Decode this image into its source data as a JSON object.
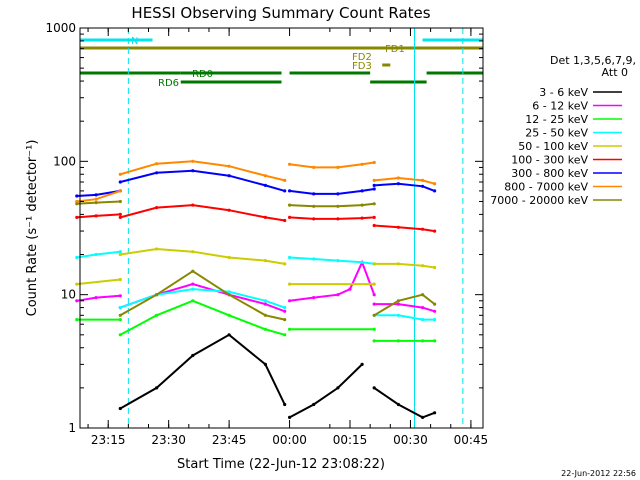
{
  "chart_data": {
    "type": "line",
    "title": "HESSI Observing Summary Count Rates",
    "xlabel": "Start Time (22-Jun-12 23:08:22)",
    "ylabel": "Count Rate (s⁻¹ detector⁻¹)",
    "yscale": "log",
    "ylim": [
      1,
      1000
    ],
    "xlim": [
      "23:08",
      "00:48"
    ],
    "x_ticks": [
      "23:15",
      "23:30",
      "23:45",
      "00:00",
      "00:15",
      "00:30",
      "00:45"
    ],
    "y_ticks": [
      "1",
      "10",
      "100",
      "1000"
    ],
    "legend_title_line1": "Det 1,3,5,6,7,9,",
    "legend_title_line2": "Att 0",
    "legend_position": "right",
    "series": [
      {
        "name": "3 - 6 keV",
        "color": "#000000",
        "segments": [
          {
            "x": [
              23.3,
              23.45,
              23.6,
              23.75,
              23.9,
              23.98
            ],
            "y": [
              1.4,
              2.0,
              3.5,
              5.0,
              3.0,
              1.5
            ]
          },
          {
            "x": [
              24.0,
              24.1,
              24.2,
              24.3
            ],
            "y": [
              1.2,
              1.5,
              2.0,
              3.0
            ]
          },
          {
            "x": [
              24.35,
              24.45,
              24.55,
              24.6
            ],
            "y": [
              2.0,
              1.5,
              1.2,
              1.3
            ]
          }
        ]
      },
      {
        "name": "6 - 12 keV",
        "color": "#ff00ff",
        "segments": [
          {
            "x": [
              23.12,
              23.2,
              23.3
            ],
            "y": [
              9.0,
              9.5,
              9.8
            ]
          },
          {
            "x": [
              23.3,
              23.45,
              23.6,
              23.75,
              23.9,
              23.98
            ],
            "y": [
              8.0,
              10.0,
              12.0,
              10.0,
              8.5,
              7.5
            ]
          },
          {
            "x": [
              24.0,
              24.1,
              24.2,
              24.25,
              24.3,
              24.35
            ],
            "y": [
              9.0,
              9.5,
              10.0,
              11.0,
              17.5,
              10.0
            ]
          },
          {
            "x": [
              24.35,
              24.45,
              24.55,
              24.6
            ],
            "y": [
              8.5,
              8.5,
              8.0,
              7.5
            ]
          }
        ]
      },
      {
        "name": "12 - 25 keV",
        "color": "#00ff00",
        "segments": [
          {
            "x": [
              23.12,
              23.3
            ],
            "y": [
              6.5,
              6.5
            ]
          },
          {
            "x": [
              23.3,
              23.45,
              23.6,
              23.75,
              23.9,
              23.98
            ],
            "y": [
              5.0,
              7.0,
              9.0,
              7.0,
              5.5,
              5.0
            ]
          },
          {
            "x": [
              24.0,
              24.35
            ],
            "y": [
              5.5,
              5.5
            ]
          },
          {
            "x": [
              24.35,
              24.45,
              24.55,
              24.6
            ],
            "y": [
              4.5,
              4.5,
              4.5,
              4.5
            ]
          }
        ]
      },
      {
        "name": "25 - 50 keV",
        "color": "#00ffff",
        "segments": [
          {
            "x": [
              23.12,
              23.2,
              23.3
            ],
            "y": [
              19.0,
              20.0,
              21.0
            ]
          },
          {
            "x": [
              23.3,
              23.45,
              23.6,
              23.75,
              23.9,
              23.98
            ],
            "y": [
              8.0,
              10.0,
              11.0,
              10.5,
              9.0,
              8.0
            ]
          },
          {
            "x": [
              24.0,
              24.1,
              24.2,
              24.3,
              24.35
            ],
            "y": [
              19.0,
              18.5,
              18.0,
              17.5,
              17.0
            ]
          },
          {
            "x": [
              24.35,
              24.45,
              24.55,
              24.6
            ],
            "y": [
              7.0,
              7.0,
              6.5,
              6.5
            ]
          }
        ]
      },
      {
        "name": "50 - 100 keV",
        "color": "#cccc00",
        "segments": [
          {
            "x": [
              23.12,
              23.3
            ],
            "y": [
              12.0,
              13.0
            ]
          },
          {
            "x": [
              23.3,
              23.45,
              23.6,
              23.75,
              23.9,
              23.98
            ],
            "y": [
              20.0,
              22.0,
              21.0,
              19.0,
              18.0,
              17.0
            ]
          },
          {
            "x": [
              24.0,
              24.35
            ],
            "y": [
              12.0,
              12.0
            ]
          },
          {
            "x": [
              24.35,
              24.45,
              24.55,
              24.6
            ],
            "y": [
              17.0,
              17.0,
              16.5,
              16.0
            ]
          }
        ]
      },
      {
        "name": "100 - 300 keV",
        "color": "#ff0000",
        "segments": [
          {
            "x": [
              23.12,
              23.2,
              23.3
            ],
            "y": [
              38.0,
              39.0,
              40.0
            ]
          },
          {
            "x": [
              23.3,
              23.45,
              23.6,
              23.75,
              23.9,
              23.98
            ],
            "y": [
              38.0,
              45.0,
              47.0,
              43.0,
              38.0,
              36.0
            ]
          },
          {
            "x": [
              24.0,
              24.1,
              24.2,
              24.3,
              24.35
            ],
            "y": [
              38.0,
              37.0,
              37.0,
              37.5,
              38.0
            ]
          },
          {
            "x": [
              24.35,
              24.45,
              24.55,
              24.6
            ],
            "y": [
              33.0,
              32.0,
              31.0,
              30.0
            ]
          }
        ]
      },
      {
        "name": "300 - 800 keV",
        "color": "#0000ff",
        "segments": [
          {
            "x": [
              23.12,
              23.2,
              23.3
            ],
            "y": [
              55.0,
              56.0,
              60.0
            ]
          },
          {
            "x": [
              23.3,
              23.45,
              23.6,
              23.75,
              23.9,
              23.98
            ],
            "y": [
              70.0,
              82.0,
              85.0,
              78.0,
              66.0,
              60.0
            ]
          },
          {
            "x": [
              24.0,
              24.1,
              24.2,
              24.3,
              24.35
            ],
            "y": [
              60.0,
              57.0,
              57.0,
              60.0,
              62.0
            ]
          },
          {
            "x": [
              24.35,
              24.45,
              24.55,
              24.6
            ],
            "y": [
              66.0,
              68.0,
              65.0,
              60.0
            ]
          }
        ]
      },
      {
        "name": "800 - 7000 keV",
        "color": "#ff8800",
        "segments": [
          {
            "x": [
              23.12,
              23.2,
              23.3
            ],
            "y": [
              50.0,
              52.0,
              60.0
            ]
          },
          {
            "x": [
              23.3,
              23.45,
              23.6,
              23.75,
              23.9,
              23.98
            ],
            "y": [
              80.0,
              96.0,
              100.0,
              92.0,
              78.0,
              72.0
            ]
          },
          {
            "x": [
              24.0,
              24.1,
              24.2,
              24.3,
              24.35
            ],
            "y": [
              95.0,
              90.0,
              90.0,
              95.0,
              98.0
            ]
          },
          {
            "x": [
              24.35,
              24.45,
              24.55,
              24.6
            ],
            "y": [
              72.0,
              75.0,
              72.0,
              68.0
            ]
          }
        ]
      },
      {
        "name": "7000 - 20000 keV",
        "color": "#888800",
        "segments": [
          {
            "x": [
              23.12,
              23.2,
              23.3
            ],
            "y": [
              48.0,
              49.0,
              50.0
            ]
          },
          {
            "x": [
              23.3,
              23.45,
              23.6,
              23.75,
              23.9,
              23.98
            ],
            "y": [
              7.0,
              10.0,
              15.0,
              10.0,
              7.0,
              6.5
            ]
          },
          {
            "x": [
              24.0,
              24.1,
              24.2,
              24.3,
              24.35
            ],
            "y": [
              47.0,
              46.0,
              46.0,
              47.0,
              48.0
            ]
          },
          {
            "x": [
              24.35,
              24.45,
              24.55,
              24.6
            ],
            "y": [
              7.0,
              9.0,
              10.0,
              8.5
            ]
          }
        ]
      }
    ],
    "annotations": {
      "n_label": "N",
      "rd0_label": "RD0",
      "rd6_label": "RD6",
      "fd1_label": "FD1",
      "fd2_label": "FD2",
      "fd3_label": "FD3"
    },
    "timestamp": "22-Jun-2012 22:56"
  }
}
